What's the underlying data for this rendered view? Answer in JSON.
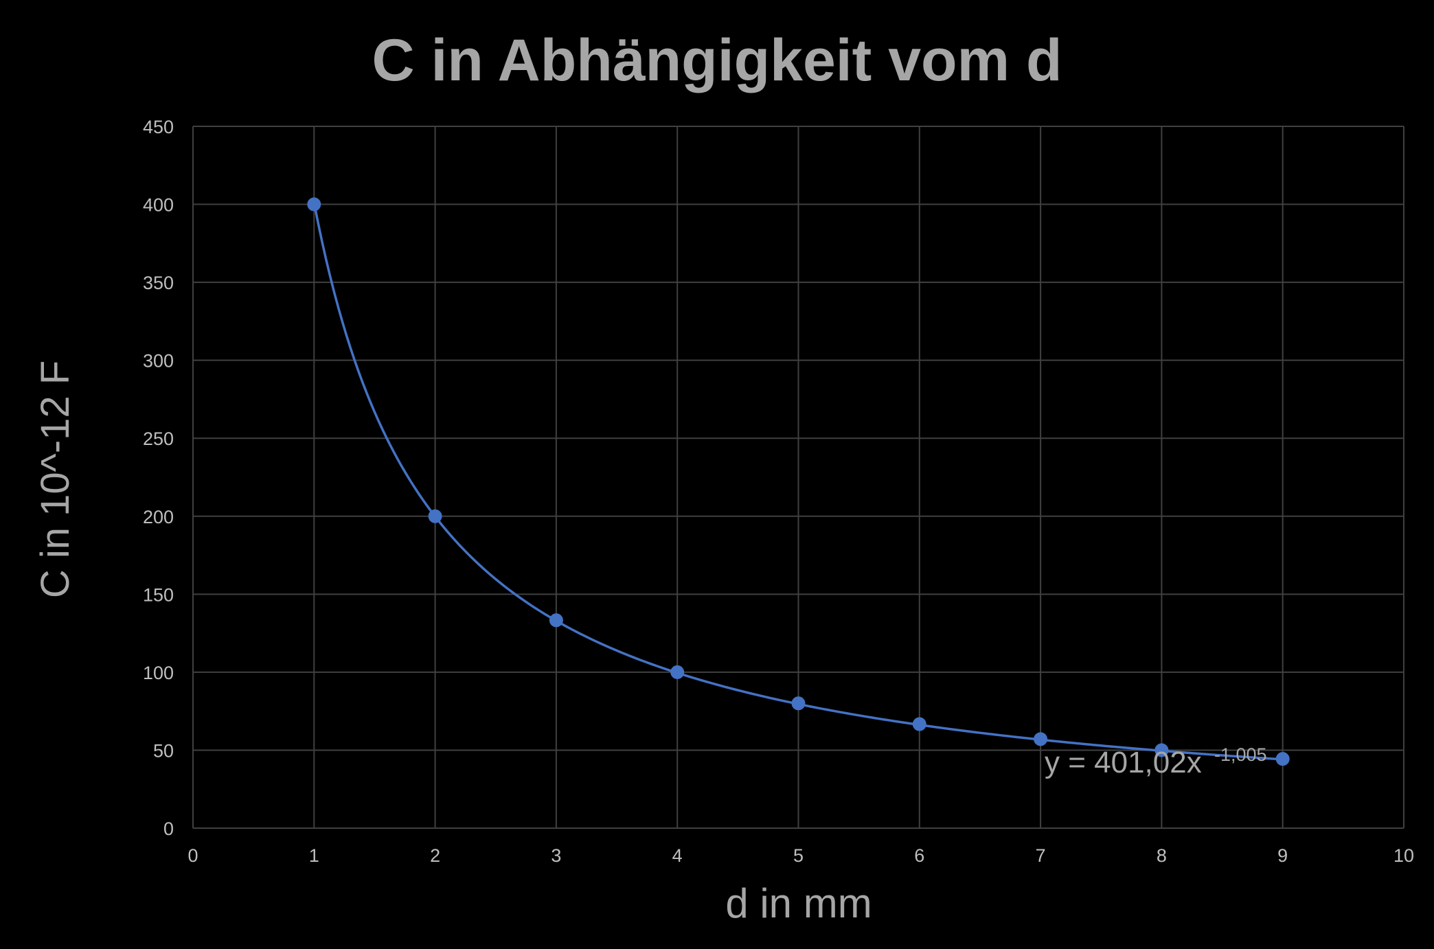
{
  "chart_data": {
    "type": "scatter",
    "title": "C in Abhängigkeit vom d",
    "xlabel": "d in mm",
    "ylabel": "C in 10^-12 F",
    "xlim": [
      0,
      10
    ],
    "ylim": [
      0,
      450
    ],
    "xticks": [
      "0",
      "1",
      "2",
      "3",
      "4",
      "5",
      "6",
      "7",
      "8",
      "9",
      "10"
    ],
    "yticks": [
      "0",
      "50",
      "100",
      "150",
      "200",
      "250",
      "300",
      "350",
      "400",
      "450"
    ],
    "grid": true,
    "series": [
      {
        "x": [
          1,
          2,
          3,
          4,
          5,
          6,
          7,
          8,
          9
        ],
        "y": [
          400,
          200,
          133.3,
          100,
          80,
          66.7,
          57.1,
          50,
          44.4
        ]
      }
    ],
    "trendline": {
      "type": "power",
      "a": 401.02,
      "b": -1.005,
      "equation": "y = 401,02x",
      "exponent": "-1,005"
    },
    "colors": {
      "background": "#000000",
      "grid": "#404040",
      "text": "#a6a6a6",
      "tick_text": "#bfbfbf",
      "series": "#4472C4"
    }
  }
}
